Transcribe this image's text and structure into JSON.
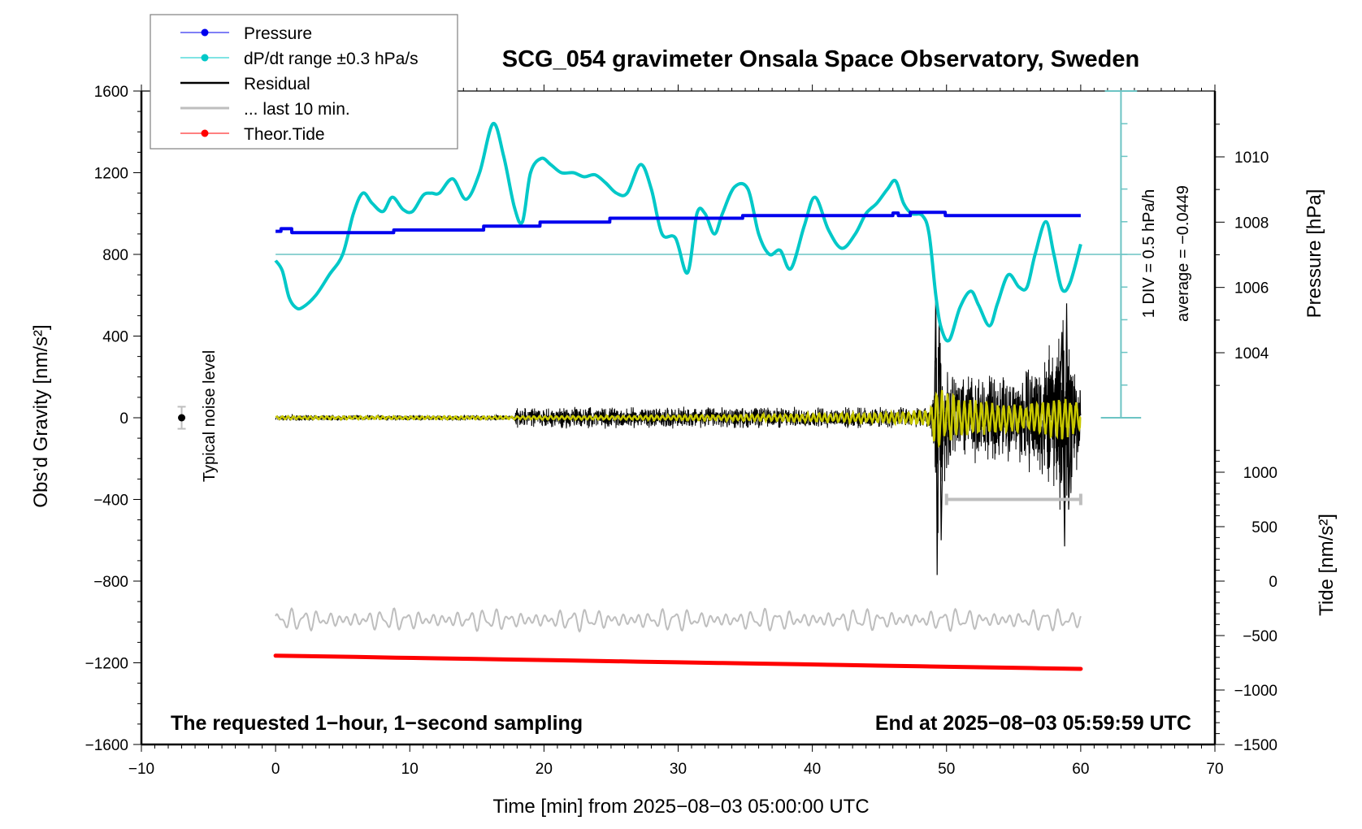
{
  "chart_data": {
    "type": "line",
    "title": "SCG_054 gravimeter Onsala Space Observatory, Sweden",
    "xlabel": "Time [min] from 2025−08−03 05:00:00 UTC",
    "ylabel_left": "Obs’d Gravity [nm/s²]",
    "ylabel_right_pressure": "Pressure [hPa]",
    "ylabel_right_tide": "Tide [nm/s²]",
    "xlim": [
      -10,
      70
    ],
    "ylim_left": [
      -1600,
      1600
    ],
    "x_ticks": [
      -10,
      0,
      10,
      20,
      30,
      40,
      50,
      60,
      70
    ],
    "x_tick_labels": [
      "−10",
      "0",
      "10",
      "20",
      "30",
      "40",
      "50",
      "60",
      "70"
    ],
    "y_ticks_left": [
      1600,
      1200,
      800,
      400,
      0,
      -400,
      -800,
      -1200,
      -1600
    ],
    "y_tick_labels_left": [
      "1600",
      "1200",
      "800",
      "400",
      "0",
      "−400",
      "−800",
      "−1200",
      "−1600"
    ],
    "pressure_axis": {
      "ticks": [
        1010,
        1008,
        1006,
        1004
      ],
      "tick_labels": [
        "1010",
        "1008",
        "1006",
        "1004"
      ],
      "range_hPa": [
        1002,
        1012
      ]
    },
    "tide_axis": {
      "ticks": [
        1000,
        500,
        0,
        -500,
        -1000,
        -1500
      ],
      "tick_labels": [
        "1000",
        "500",
        "0",
        "−500",
        "−1000",
        "−1500"
      ],
      "range": [
        -1500,
        1000
      ]
    },
    "dpdt_scale": {
      "div_label": "1 DIV = 0.5 hPa/h",
      "average_label": "average = −0.0449",
      "baseline_gravity_equiv": 800
    },
    "legend": {
      "placement": "top-left",
      "entries": [
        {
          "label": "Pressure",
          "color": "#0000ee",
          "marker": "dot"
        },
        {
          "label": "dP/dt range ±0.3 hPa/s",
          "color": "#00c8c8",
          "marker": "dot"
        },
        {
          "label": "Residual",
          "color": "#000000",
          "marker": "line"
        },
        {
          "label": "... last 10 min.",
          "color": "#bebebe",
          "marker": "line"
        },
        {
          "label": "Theor.Tide",
          "color": "#ff0000",
          "marker": "dot"
        }
      ]
    },
    "annotations": {
      "bottom_left": "The requested 1−hour, 1−second sampling",
      "bottom_right": "End at 2025−08−03 05:59:59 UTC",
      "noise_label": "Typical noise level"
    },
    "series": [
      {
        "name": "Pressure",
        "unit": "hPa",
        "x": [
          0,
          0.4,
          0.41,
          1.2,
          1.21,
          8.8,
          8.81,
          15.5,
          15.51,
          19.7,
          19.71,
          24.9,
          24.91,
          34.8,
          34.81,
          46.0,
          46.01,
          46.4,
          46.41,
          47.3,
          47.31,
          49.9,
          49.91,
          60
        ],
        "values": [
          1007.72,
          1007.72,
          1007.8,
          1007.8,
          1007.68,
          1007.68,
          1007.76,
          1007.76,
          1007.88,
          1007.88,
          1008.0,
          1008.0,
          1008.12,
          1008.12,
          1008.2,
          1008.2,
          1008.28,
          1008.28,
          1008.2,
          1008.2,
          1008.3,
          1008.3,
          1008.2,
          1008.2
        ]
      },
      {
        "name": "dP/dt",
        "unit": "nm/s2 equivalent on left axis",
        "x": [
          0,
          0.5,
          1,
          1.5,
          2,
          3,
          4,
          5,
          5.8,
          6.5,
          7.2,
          8,
          8.7,
          9.5,
          10.2,
          11,
          11.6,
          12.2,
          13.2,
          14.2,
          15.2,
          16.2,
          17,
          17.8,
          18.4,
          19,
          19.8,
          20.5,
          21.3,
          22.2,
          23,
          23.8,
          24.6,
          25.4,
          26.2,
          27.2,
          28,
          28.8,
          29.8,
          30.7,
          31.4,
          32,
          32.7,
          33.3,
          34.2,
          35.2,
          36,
          36.8,
          37.6,
          38.4,
          39.4,
          40.2,
          41.2,
          42.2,
          43.2,
          44,
          44.8,
          45.6,
          46.2,
          46.8,
          47.4,
          48.2,
          48.7,
          49.2,
          49.6,
          50.2,
          51,
          51.8,
          52.4,
          53.2,
          53.8,
          54.6,
          55.4,
          56,
          56.6,
          57.4,
          58,
          58.6,
          59.2,
          60
        ],
        "values": [
          770,
          720,
          590,
          540,
          540,
          600,
          700,
          800,
          1000,
          1100,
          1050,
          1010,
          1080,
          1020,
          1010,
          1090,
          1100,
          1100,
          1170,
          1070,
          1200,
          1440,
          1280,
          1030,
          960,
          1200,
          1270,
          1240,
          1200,
          1200,
          1180,
          1190,
          1150,
          1100,
          1100,
          1240,
          1120,
          900,
          880,
          710,
          1000,
          1000,
          900,
          1000,
          1130,
          1120,
          900,
          800,
          820,
          730,
          940,
          1080,
          920,
          830,
          900,
          1000,
          1050,
          1120,
          1160,
          1050,
          1000,
          990,
          900,
          600,
          440,
          380,
          540,
          620,
          550,
          450,
          560,
          700,
          640,
          640,
          800,
          960,
          800,
          630,
          660,
          850
        ]
      },
      {
        "name": "Residual",
        "unit": "nm/s2",
        "description": "black high-frequency residual; amplitude ~±15 for x<17.8, ~±60 for 17.8–49, large burst at ~49.3 reaching about +620 / −770, ~±250 for 50–58, burst to ~+560 / −630 near 58.5–59.2",
        "envelope": {
          "x": [
            0,
            17.8,
            17.9,
            48.8,
            49.0,
            49.3,
            49.6,
            50.5,
            55,
            58,
            58.6,
            59.2,
            60
          ],
          "amplitude": [
            15,
            15,
            55,
            55,
            150,
            700,
            350,
            250,
            220,
            400,
            550,
            450,
            200
          ]
        }
      },
      {
        "name": "Filtered residual",
        "color": "#c8c800",
        "unit": "nm/s2",
        "envelope": {
          "x": [
            0,
            17.8,
            30,
            45,
            48.8,
            49.3,
            49.8,
            52,
            56,
            58.5,
            60
          ],
          "amplitude": [
            8,
            8,
            12,
            25,
            40,
            200,
            130,
            90,
            70,
            110,
            70
          ]
        }
      },
      {
        "name": "... last 10 min.",
        "unit": "nm/s2",
        "center": -990,
        "amplitude": 55,
        "x_range": [
          0,
          60
        ]
      },
      {
        "name": "Theor.Tide",
        "unit": "nm/s2 (left-axis position)",
        "x": [
          0,
          60
        ],
        "values": [
          -1165,
          -1230
        ]
      }
    ],
    "last10_bracket": {
      "x": [
        50,
        60
      ],
      "y": -400
    },
    "noise_marker": {
      "x": -7,
      "y": 0,
      "err": 18
    }
  }
}
